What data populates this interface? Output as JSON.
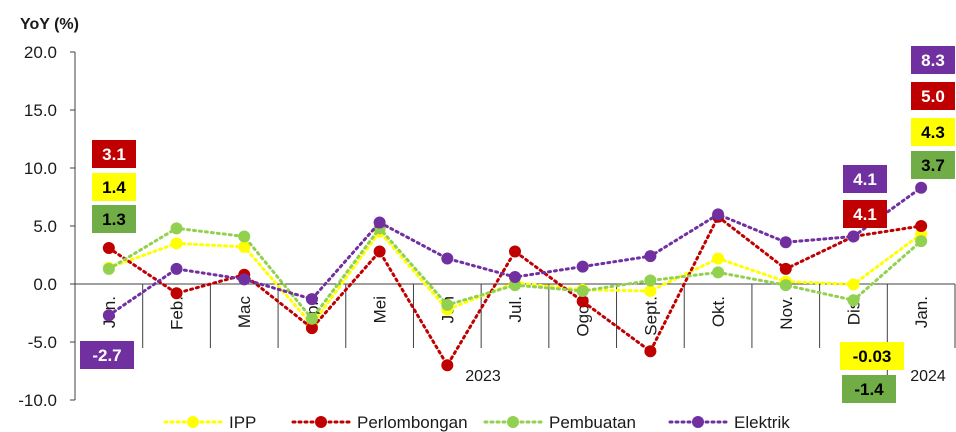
{
  "chart_data": {
    "type": "line",
    "ylabel": "YoY (%)",
    "ylim": [
      -10,
      20
    ],
    "yticks": [
      "20.0",
      "15.0",
      "10.0",
      "5.0",
      "0.0",
      "-5.0",
      "-10.0"
    ],
    "categories": [
      "Jan.",
      "Feb.",
      "Mac",
      "Apr.",
      "Mei",
      "Jun",
      "Jul.",
      "Ogos",
      "Sept.",
      "Okt.",
      "Nov.",
      "Dis.",
      "Jan."
    ],
    "year_labels": [
      "2023",
      "2024"
    ],
    "series": [
      {
        "name": "IPP",
        "color": "#ffff00",
        "values": [
          1.4,
          3.5,
          3.2,
          -3.5,
          4.5,
          -2.2,
          0.1,
          -0.5,
          -0.6,
          2.2,
          0.2,
          -0.03,
          4.3
        ]
      },
      {
        "name": "Perlombongan",
        "color": "#c00000",
        "values": [
          3.1,
          -0.8,
          0.8,
          -3.8,
          2.8,
          -7.0,
          2.8,
          -1.5,
          -5.8,
          5.8,
          1.3,
          4.1,
          5.0
        ]
      },
      {
        "name": "Pembuatan",
        "color": "#92d050",
        "values": [
          1.3,
          4.8,
          4.1,
          -3.0,
          4.8,
          -1.8,
          -0.1,
          -0.6,
          0.3,
          1.0,
          -0.1,
          -1.4,
          3.7
        ]
      },
      {
        "name": "Elektrik",
        "color": "#7030a0",
        "values": [
          -2.7,
          1.3,
          0.4,
          -1.3,
          5.3,
          2.2,
          0.6,
          1.5,
          2.4,
          6.0,
          3.6,
          4.1,
          8.3
        ]
      }
    ],
    "data_labels": [
      {
        "text": "3.1",
        "bg": "#c00000",
        "fg": "#ffffff"
      },
      {
        "text": "1.4",
        "bg": "#ffff00",
        "fg": "#000000"
      },
      {
        "text": "1.3",
        "bg": "#70ad47",
        "fg": "#000000"
      },
      {
        "text": "-2.7",
        "bg": "#7030a0",
        "fg": "#ffffff"
      },
      {
        "text": "4.1",
        "bg": "#7030a0",
        "fg": "#ffffff"
      },
      {
        "text": "4.1",
        "bg": "#c00000",
        "fg": "#ffffff"
      },
      {
        "text": "-0.03",
        "bg": "#ffff00",
        "fg": "#000000"
      },
      {
        "text": "-1.4",
        "bg": "#70ad47",
        "fg": "#000000"
      },
      {
        "text": "8.3",
        "bg": "#7030a0",
        "fg": "#ffffff"
      },
      {
        "text": "5.0",
        "bg": "#c00000",
        "fg": "#ffffff"
      },
      {
        "text": "4.3",
        "bg": "#ffff00",
        "fg": "#000000"
      },
      {
        "text": "3.7",
        "bg": "#70ad47",
        "fg": "#000000"
      }
    ],
    "legend_position": "bottom"
  }
}
